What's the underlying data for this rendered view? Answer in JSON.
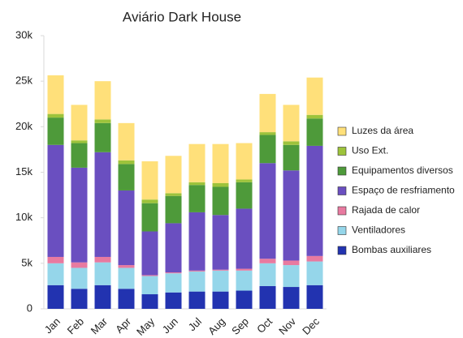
{
  "chart_data": {
    "type": "stacked_bar",
    "title": "Aviário Dark House",
    "categories": [
      "Jan",
      "Feb",
      "Mar",
      "Apr",
      "May",
      "Jun",
      "Jul",
      "Aug",
      "Sep",
      "Oct",
      "Nov",
      "Dec"
    ],
    "series": [
      {
        "name": "Bombas auxiliares",
        "color": "#2233b0",
        "values": [
          2600,
          2200,
          2600,
          2200,
          1600,
          1800,
          1900,
          1900,
          2000,
          2500,
          2400,
          2600
        ]
      },
      {
        "name": "Ventiladores",
        "color": "#95d6ea",
        "values": [
          2400,
          2300,
          2500,
          2300,
          2000,
          2100,
          2200,
          2300,
          2200,
          2500,
          2400,
          2600
        ]
      },
      {
        "name": "Rajada de calor",
        "color": "#e87aa0",
        "values": [
          700,
          600,
          600,
          300,
          100,
          100,
          100,
          100,
          200,
          500,
          500,
          600
        ]
      },
      {
        "name": "Espaço de resfriamento",
        "color": "#6a4fc0",
        "values": [
          12300,
          10400,
          11500,
          8200,
          4800,
          5400,
          6400,
          6000,
          6600,
          10500,
          9900,
          12100
        ]
      },
      {
        "name": "Equipamentos diversos",
        "color": "#4e9a3a",
        "values": [
          3000,
          2700,
          3200,
          2900,
          3100,
          3000,
          3000,
          3100,
          2900,
          3100,
          2800,
          3000
        ]
      },
      {
        "name": "Uso Ext.",
        "color": "#9dc33b",
        "values": [
          400,
          300,
          400,
          400,
          400,
          300,
          300,
          400,
          300,
          300,
          400,
          400
        ]
      },
      {
        "name": "Luzes da área",
        "color": "#ffe07a",
        "values": [
          4250,
          3900,
          4200,
          4100,
          4200,
          4100,
          4200,
          4300,
          4000,
          4200,
          4000,
          4100
        ]
      }
    ],
    "ylim": [
      0,
      30000
    ],
    "yticks": [
      0,
      {
        "value": 5000,
        "label": "5k"
      },
      {
        "value": 10000,
        "label": "10k"
      },
      {
        "value": 15000,
        "label": "15k"
      },
      {
        "value": 20000,
        "label": "20k"
      },
      {
        "value": 25000,
        "label": "25k"
      },
      {
        "value": 30000,
        "label": "30k"
      }
    ],
    "legend": "right"
  }
}
